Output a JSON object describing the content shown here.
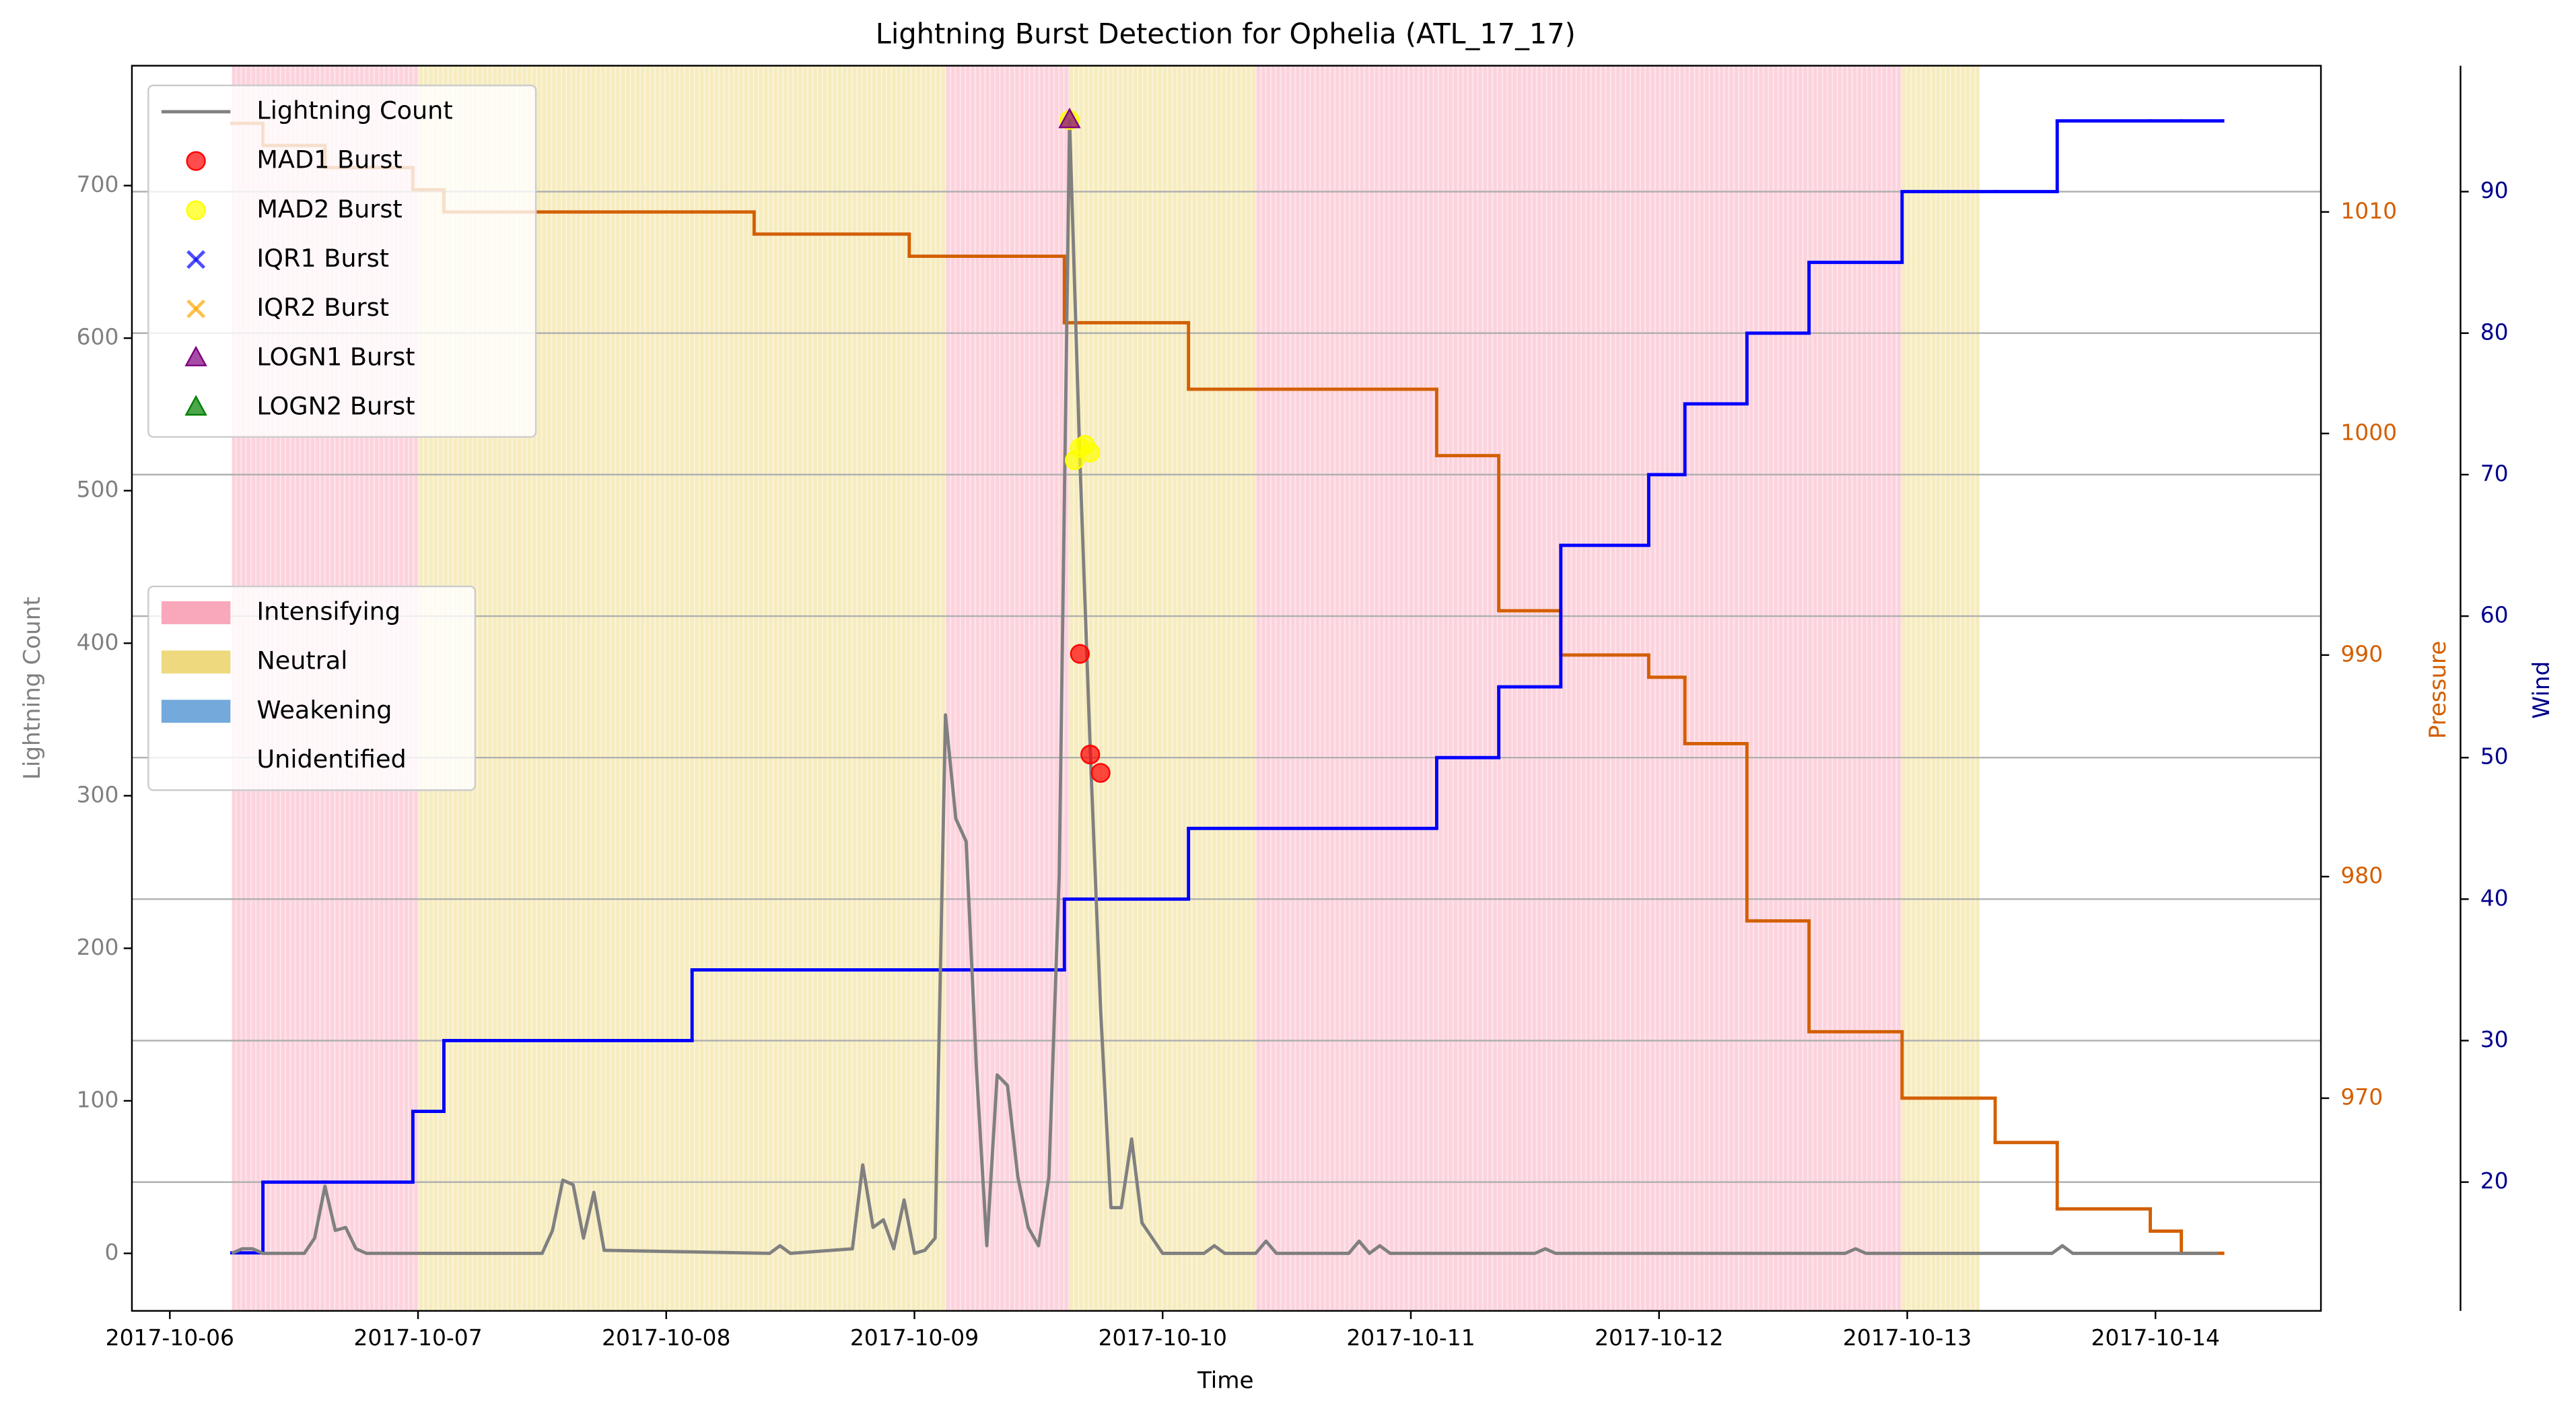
{
  "chart_data": {
    "type": "line",
    "title": "Lightning Burst Detection for Ophelia (ATL_17_17)",
    "xlabel": "Time",
    "ylabel": "Lightning Count",
    "y2label": "Pressure",
    "y3label": "Wind",
    "xlim": [
      "2017-10-05 20:20",
      "2017-10-14 16:00"
    ],
    "xticks": [
      "2017-10-06",
      "2017-10-07",
      "2017-10-08",
      "2017-10-09",
      "2017-10-10",
      "2017-10-11",
      "2017-10-12",
      "2017-10-13",
      "2017-10-14"
    ],
    "ylim": [
      -37.7,
      778.6
    ],
    "yticks": [
      0,
      100,
      200,
      300,
      400,
      500,
      600,
      700
    ],
    "y2lim": [
      960.4,
      1016.6
    ],
    "y2ticks": [
      970,
      980,
      990,
      1000,
      1010
    ],
    "y3lim": [
      10.9,
      98.9
    ],
    "y3ticks": [
      20,
      30,
      40,
      50,
      60,
      70,
      80,
      90
    ],
    "grid": "y3",
    "ylabel_color": "#808080",
    "legend_loc": "upper left",
    "region_legend_loc": "center left",
    "series": [
      {
        "name": "Lightning Count",
        "type": "line",
        "color": "#808080",
        "x": [
          "2017-10-06 06:00",
          "2017-10-06 07:00",
          "2017-10-06 08:00",
          "2017-10-06 09:00",
          "2017-10-06 13:00",
          "2017-10-06 14:00",
          "2017-10-06 15:00",
          "2017-10-06 16:00",
          "2017-10-06 17:00",
          "2017-10-06 18:00",
          "2017-10-06 19:00",
          "2017-10-07 12:00",
          "2017-10-07 13:00",
          "2017-10-07 14:00",
          "2017-10-07 15:00",
          "2017-10-07 16:00",
          "2017-10-07 17:00",
          "2017-10-07 18:00",
          "2017-10-08 10:00",
          "2017-10-08 11:00",
          "2017-10-08 12:00",
          "2017-10-08 18:00",
          "2017-10-08 19:00",
          "2017-10-08 20:00",
          "2017-10-08 21:00",
          "2017-10-08 22:00",
          "2017-10-08 23:00",
          "2017-10-09 00:00",
          "2017-10-09 01:00",
          "2017-10-09 02:00",
          "2017-10-09 03:00",
          "2017-10-09 04:00",
          "2017-10-09 05:00",
          "2017-10-09 06:00",
          "2017-10-09 07:00",
          "2017-10-09 08:00",
          "2017-10-09 09:00",
          "2017-10-09 10:00",
          "2017-10-09 11:00",
          "2017-10-09 12:00",
          "2017-10-09 13:00",
          "2017-10-09 14:00",
          "2017-10-09 15:00",
          "2017-10-09 16:00",
          "2017-10-09 17:00",
          "2017-10-09 18:00",
          "2017-10-09 19:00",
          "2017-10-09 20:00",
          "2017-10-09 21:00",
          "2017-10-09 22:00",
          "2017-10-09 23:00",
          "2017-10-10 00:00",
          "2017-10-10 04:00",
          "2017-10-10 05:00",
          "2017-10-10 06:00",
          "2017-10-10 09:00",
          "2017-10-10 10:00",
          "2017-10-10 11:00",
          "2017-10-10 18:00",
          "2017-10-10 19:00",
          "2017-10-10 20:00",
          "2017-10-10 21:00",
          "2017-10-10 22:00",
          "2017-10-11 12:00",
          "2017-10-11 13:00",
          "2017-10-11 14:00",
          "2017-10-12 18:00",
          "2017-10-12 19:00",
          "2017-10-12 20:00",
          "2017-10-13 14:00",
          "2017-10-13 15:00",
          "2017-10-13 16:00",
          "2017-10-14 06:00"
        ],
        "values": [
          0,
          3,
          3,
          0,
          0,
          10,
          44,
          15,
          17,
          3,
          0,
          0,
          15,
          48,
          45,
          10,
          40,
          2,
          0,
          5,
          0,
          3,
          58,
          17,
          22,
          3,
          35,
          0,
          2,
          10,
          353,
          285,
          270,
          120,
          5,
          117,
          110,
          50,
          17,
          5,
          50,
          248,
          743,
          520,
          330,
          160,
          30,
          30,
          75,
          20,
          10,
          0,
          0,
          5,
          0,
          0,
          8,
          0,
          0,
          8,
          0,
          5,
          0,
          0,
          3,
          0,
          0,
          3,
          0,
          0,
          5,
          0,
          0
        ]
      },
      {
        "name": "MAD1 Burst",
        "type": "scatter",
        "marker": "o",
        "color": "#ff0000",
        "x": [
          "2017-10-09 16:00",
          "2017-10-09 17:00",
          "2017-10-09 18:00"
        ],
        "values": [
          393,
          327,
          315
        ]
      },
      {
        "name": "MAD2 Burst",
        "type": "scatter",
        "marker": "o",
        "color": "#ffff00",
        "x": [
          "2017-10-09 15:00",
          "2017-10-09 15:30",
          "2017-10-09 16:00",
          "2017-10-09 16:30",
          "2017-10-09 17:00"
        ],
        "values": [
          743,
          520,
          528,
          530,
          525
        ]
      },
      {
        "name": "IQR1 Burst",
        "type": "scatter",
        "marker": "x",
        "color": "#0000ff",
        "x": [],
        "values": []
      },
      {
        "name": "IQR2 Burst",
        "type": "scatter",
        "marker": "x",
        "color": "#ffa500",
        "x": [],
        "values": []
      },
      {
        "name": "LOGN1 Burst",
        "type": "scatter",
        "marker": "^",
        "color": "#800080",
        "x": [
          "2017-10-09 15:00"
        ],
        "values": [
          743
        ]
      },
      {
        "name": "LOGN2 Burst",
        "type": "scatter",
        "marker": "^",
        "color": "#008000",
        "x": [],
        "values": []
      }
    ],
    "track": {
      "drawstyle": "steps-post",
      "pressure_color": "#d35f00",
      "wind_color": "#0000ff",
      "wind_axis_color": "#00008b",
      "x": [
        "2017-10-06 06:00",
        "2017-10-06 09:00",
        "2017-10-06 15:00",
        "2017-10-06 23:30",
        "2017-10-07 02:30",
        "2017-10-08 02:30",
        "2017-10-08 08:30",
        "2017-10-08 23:30",
        "2017-10-09 14:30",
        "2017-10-10 02:30",
        "2017-10-11 02:30",
        "2017-10-11 08:30",
        "2017-10-11 14:30",
        "2017-10-11 23:00",
        "2017-10-12 02:30",
        "2017-10-12 08:30",
        "2017-10-12 14:30",
        "2017-10-12 23:30",
        "2017-10-13 08:30",
        "2017-10-13 14:30",
        "2017-10-13 23:30",
        "2017-10-14 02:30",
        "2017-10-14 06:30"
      ],
      "pressure": [
        1014,
        1013,
        1012,
        1011,
        1010,
        1010,
        1009,
        1008,
        1005,
        1002,
        999,
        992,
        990,
        989,
        986,
        978,
        973,
        970,
        968,
        965,
        964,
        963,
        963
      ],
      "wind": [
        15,
        20,
        20,
        25,
        30,
        35,
        35,
        35,
        40,
        45,
        50,
        55,
        65,
        70,
        75,
        80,
        85,
        90,
        90,
        95,
        95,
        95,
        95
      ]
    },
    "region_legend": [
      {
        "name": "Intensifying",
        "color": "#f9a8bb"
      },
      {
        "name": "Neutral",
        "color": "#eed97f"
      },
      {
        "name": "Weakening",
        "color": "#74a9dc"
      },
      {
        "name": "Unidentified",
        "color": "none"
      }
    ],
    "regions": [
      {
        "state": "Intensifying",
        "start": "2017-10-06 06:00",
        "end": "2017-10-07 00:00"
      },
      {
        "state": "Neutral",
        "start": "2017-10-07 00:00",
        "end": "2017-10-09 03:00"
      },
      {
        "state": "Intensifying",
        "start": "2017-10-09 03:00",
        "end": "2017-10-09 15:00"
      },
      {
        "state": "Neutral",
        "start": "2017-10-09 15:00",
        "end": "2017-10-10 09:00"
      },
      {
        "state": "Intensifying",
        "start": "2017-10-10 09:00",
        "end": "2017-10-12 23:30"
      },
      {
        "state": "Neutral",
        "start": "2017-10-12 23:30",
        "end": "2017-10-13 07:00"
      }
    ]
  }
}
